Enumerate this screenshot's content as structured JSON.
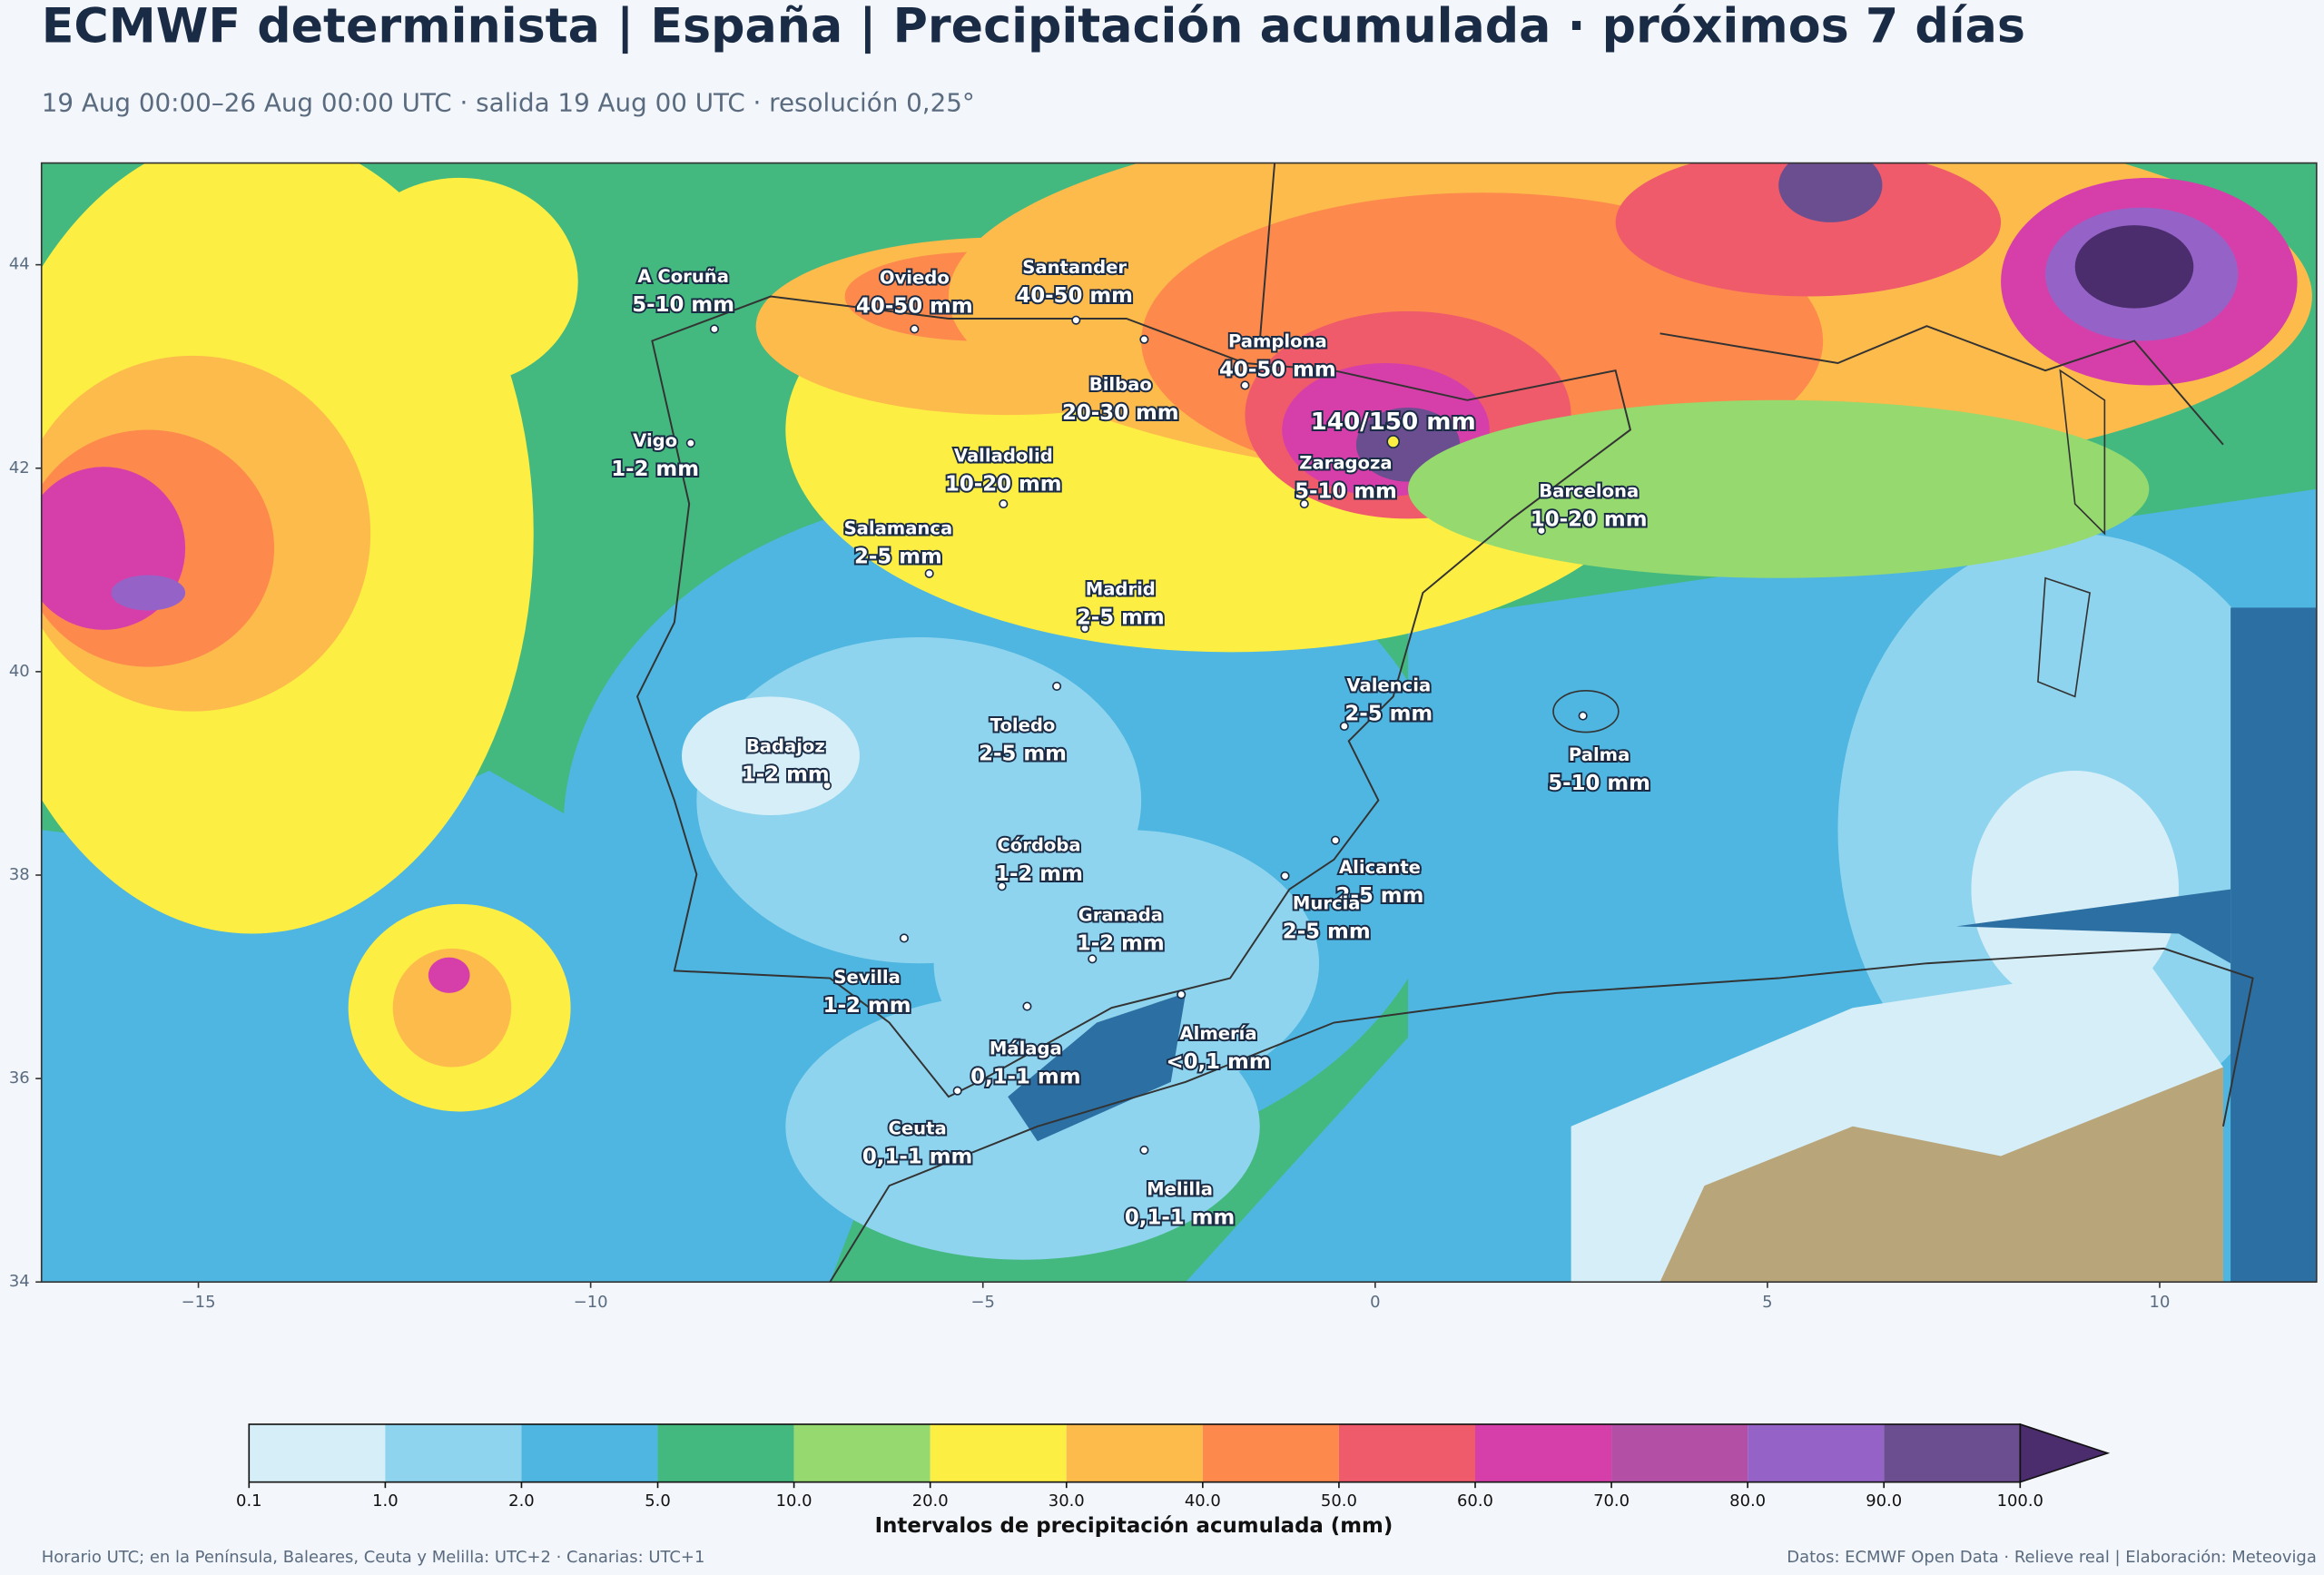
{
  "title": "ECMWF determinista | España | Precipitación acumulada · próximos 7 días",
  "subtitle": "19 Aug 00:00–26 Aug 00:00 UTC · salida 19 Aug 00 UTC · resolución 0,25°",
  "map": {
    "xlim": [
      -17,
      12
    ],
    "ylim": [
      34,
      45
    ],
    "xticks": [
      {
        "value": -15,
        "label": "−15"
      },
      {
        "value": -10,
        "label": "−10"
      },
      {
        "value": -5,
        "label": "−5"
      },
      0,
      5,
      10
    ],
    "yticks": [
      34,
      36,
      38,
      40,
      42,
      44
    ]
  },
  "cities": [
    {
      "name": "A Coruña",
      "amount": "5-10 mm"
    },
    {
      "name": "Oviedo",
      "amount": "40-50 mm"
    },
    {
      "name": "Santander",
      "amount": "40-50 mm"
    },
    {
      "name": "Pamplona",
      "amount": "40-50 mm"
    },
    {
      "name": "Bilbao",
      "amount": "20-30 mm"
    },
    {
      "name": "Vigo",
      "amount": "1-2 mm"
    },
    {
      "name": "Valladolid",
      "amount": "10-20 mm"
    },
    {
      "name": "Zaragoza",
      "amount": "5-10 mm"
    },
    {
      "name": "Barcelona",
      "amount": "10-20 mm"
    },
    {
      "name": "Salamanca",
      "amount": "2-5 mm"
    },
    {
      "name": "Madrid",
      "amount": "2-5 mm"
    },
    {
      "name": "Valencia",
      "amount": "2-5 mm"
    },
    {
      "name": "Badajoz",
      "amount": "1-2 mm"
    },
    {
      "name": "Toledo",
      "amount": "2-5 mm"
    },
    {
      "name": "Palma",
      "amount": "5-10 mm"
    },
    {
      "name": "Córdoba",
      "amount": "1-2 mm"
    },
    {
      "name": "Alicante",
      "amount": "2-5 mm"
    },
    {
      "name": "Murcia",
      "amount": "2-5 mm"
    },
    {
      "name": "Granada",
      "amount": "1-2 mm"
    },
    {
      "name": "Sevilla",
      "amount": "1-2 mm"
    },
    {
      "name": "Almería",
      "amount": "<0,1 mm"
    },
    {
      "name": "Málaga",
      "amount": "0,1-1 mm"
    },
    {
      "name": "Ceuta",
      "amount": "0,1-1 mm"
    },
    {
      "name": "Melilla",
      "amount": "0,1-1 mm"
    }
  ],
  "max_label": "140/150 mm",
  "colorbar": {
    "title": "Intervalos de precipitación acumulada (mm)",
    "bounds": [
      0.1,
      {
        "value": 1,
        "label": "1.0"
      },
      {
        "value": 2,
        "label": "2.0"
      },
      {
        "value": 5,
        "label": "5.0"
      },
      {
        "value": 10,
        "label": "10.0"
      },
      {
        "value": 20,
        "label": "20.0"
      },
      {
        "value": 30,
        "label": "30.0"
      },
      {
        "value": 40,
        "label": "40.0"
      },
      {
        "value": 50,
        "label": "50.0"
      },
      {
        "value": 60,
        "label": "60.0"
      },
      {
        "value": 70,
        "label": "70.0"
      },
      {
        "value": 80,
        "label": "80.0"
      },
      {
        "value": 90,
        "label": "90.0"
      },
      {
        "value": 100,
        "label": "100.0"
      }
    ],
    "colors": [
      "#d6eef7",
      "#8fd4ee",
      "#4eb6e0",
      "#43b97f",
      "#95d96f",
      "#fdee44",
      "#fdbb4c",
      "#fd8a4c",
      "#ef5b6b",
      "#d63fa9",
      "#b44fa6",
      "#9563c8",
      "#6b4e8f"
    ],
    "extend_color": "#4b2d6e"
  },
  "footer": {
    "left": "Horario UTC; en la Península, Baleares, Ceuta y Melilla: UTC+2 · Canarias: UTC+1",
    "right": "Datos: ECMWF Open Data · Relieve real | Elaboración: Meteoviga"
  }
}
